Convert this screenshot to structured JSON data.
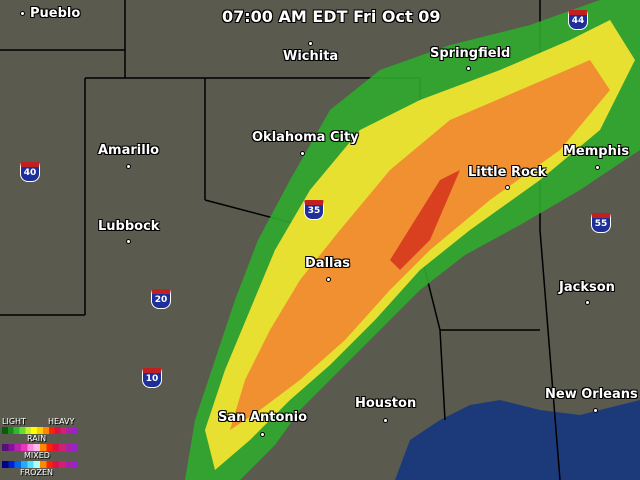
{
  "title": "07:00 AM EDT Fri Oct 09",
  "cities": [
    {
      "name": "Pueblo"
    },
    {
      "name": "Wichita"
    },
    {
      "name": "Springfield"
    },
    {
      "name": "Amarillo"
    },
    {
      "name": "Oklahoma City"
    },
    {
      "name": "Little Rock"
    },
    {
      "name": "Memphis"
    },
    {
      "name": "Lubbock"
    },
    {
      "name": "Dallas"
    },
    {
      "name": "Jackson"
    },
    {
      "name": "Houston"
    },
    {
      "name": "San Antonio"
    },
    {
      "name": "New Orleans"
    }
  ],
  "interstates": [
    "44",
    "40",
    "35",
    "55",
    "20",
    "10"
  ],
  "legend": {
    "light": "LIGHT",
    "heavy": "HEAVY",
    "rain": "RAIN",
    "mixed": "MIXED",
    "frozen": "FROZEN",
    "rain_colors": [
      "#0a5a0a",
      "#1a8a1a",
      "#33b533",
      "#66dd33",
      "#ccee22",
      "#ffff00",
      "#ffcc00",
      "#ff8800",
      "#ff2200",
      "#dd1144",
      "#cc2277",
      "#aa22aa",
      "#9922cc"
    ],
    "mixed_colors": [
      "#551177",
      "#881199",
      "#bb22aa",
      "#ee33bb",
      "#ff88dd",
      "#ffbbee",
      "#ff8800",
      "#ff2200",
      "#dd1144",
      "#cc2277",
      "#aa22aa",
      "#9922cc"
    ],
    "frozen_colors": [
      "#000088",
      "#0022cc",
      "#0066ee",
      "#22aaff",
      "#55ddff",
      "#aaffff",
      "#ff8800",
      "#ff2200",
      "#dd1144",
      "#cc2277",
      "#aa22aa",
      "#9922cc"
    ]
  },
  "colors": {
    "land": "#5a5a4e",
    "water": "#1c3a7a",
    "borders": "#000000"
  }
}
